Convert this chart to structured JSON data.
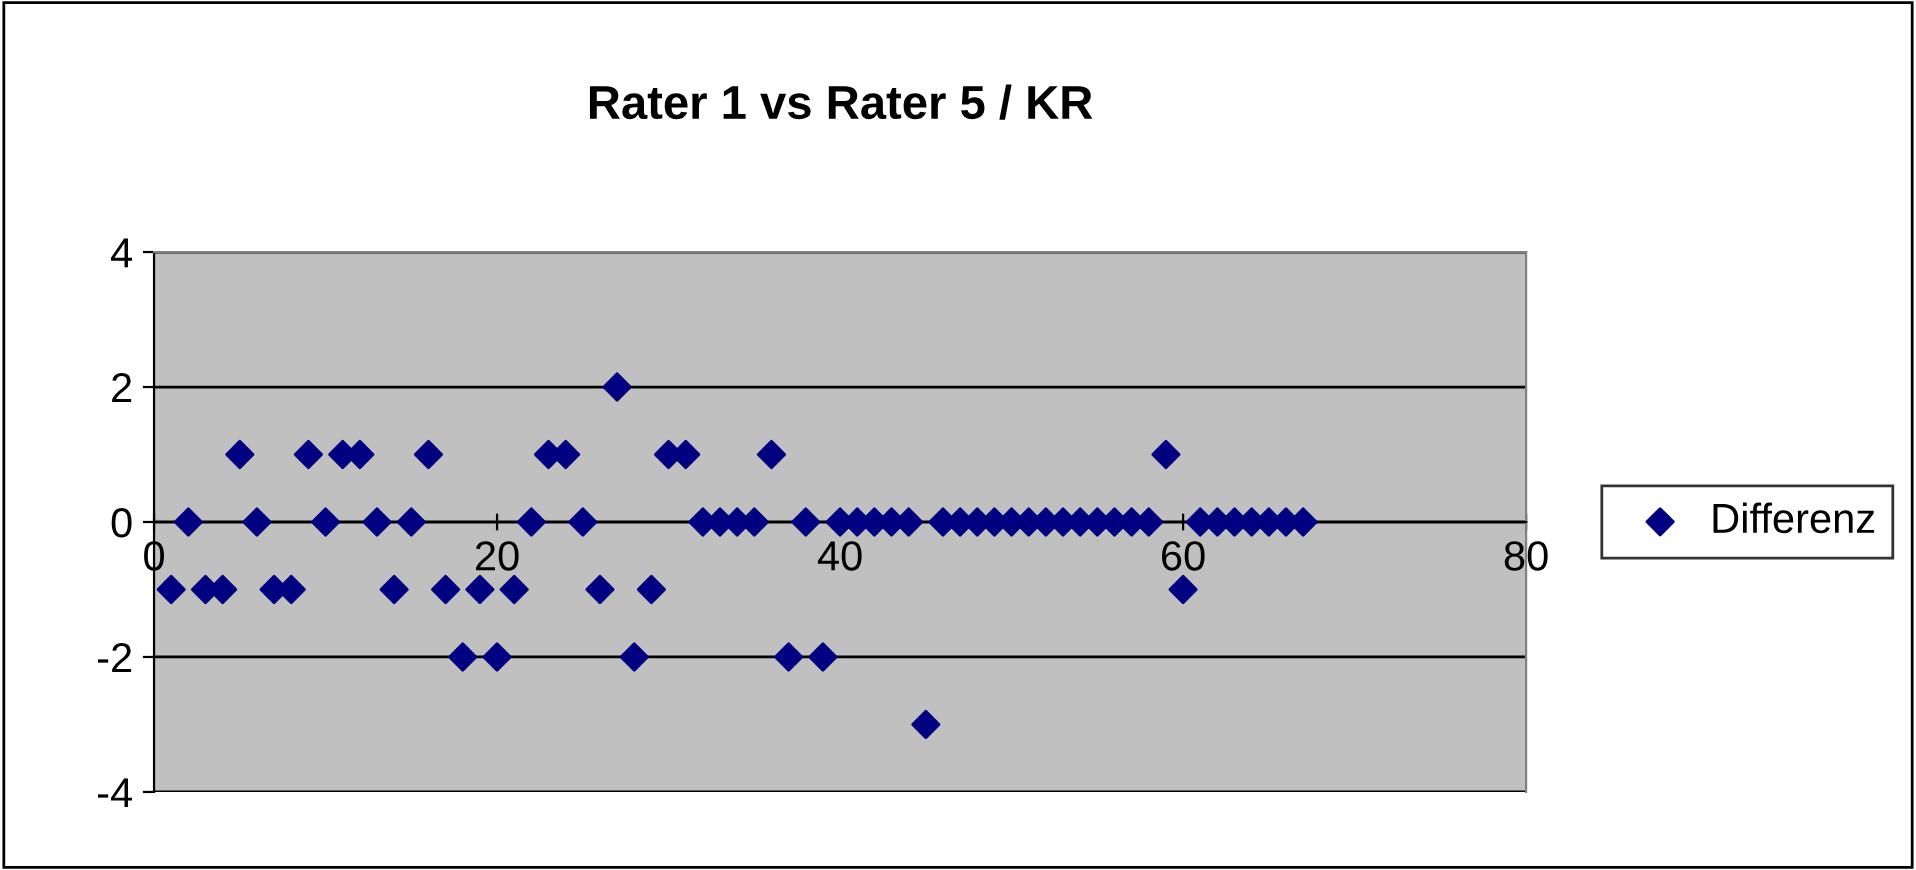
{
  "chart_data": {
    "type": "scatter",
    "title": "Rater 1 vs Rater 5 / KR",
    "x": [
      1,
      2,
      3,
      4,
      5,
      6,
      7,
      8,
      9,
      10,
      11,
      12,
      13,
      14,
      15,
      16,
      17,
      18,
      19,
      20,
      21,
      22,
      23,
      24,
      25,
      26,
      27,
      28,
      29,
      30,
      31,
      32,
      33,
      34,
      35,
      36,
      37,
      38,
      39,
      40,
      41,
      42,
      43,
      44,
      45,
      46,
      47,
      48,
      49,
      50,
      51,
      52,
      53,
      54,
      55,
      56,
      57,
      58,
      59,
      60,
      61,
      62,
      63,
      64,
      65,
      66,
      67
    ],
    "series": [
      {
        "name": "Differenz",
        "color": "#000080",
        "values": [
          -1,
          0,
          -1,
          -1,
          1,
          0,
          -1,
          -1,
          1,
          0,
          1,
          1,
          0,
          -1,
          0,
          1,
          -1,
          -2,
          -1,
          -2,
          -1,
          0,
          1,
          1,
          0,
          -1,
          2,
          -2,
          -1,
          1,
          1,
          0,
          0,
          0,
          0,
          1,
          -2,
          0,
          -2,
          0,
          0,
          0,
          0,
          0,
          -3,
          0,
          0,
          0,
          0,
          0,
          0,
          0,
          0,
          0,
          0,
          0,
          0,
          0,
          1,
          -1,
          0,
          0,
          0,
          0,
          0,
          0,
          0
        ]
      }
    ],
    "xlim": [
      0,
      80
    ],
    "xticks": [
      0,
      20,
      40,
      60,
      80
    ],
    "ylim": [
      -4,
      4
    ],
    "yticks": [
      -4,
      -2,
      0,
      2,
      4
    ],
    "grid": "y",
    "legend": "right",
    "marker": "diamond"
  }
}
